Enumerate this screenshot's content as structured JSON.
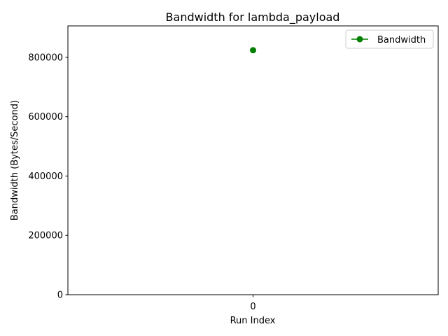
{
  "chart_data": {
    "type": "line",
    "title": "Bandwidth for lambda_payload",
    "xlabel": "Run Index",
    "ylabel": "Bandwidth (Bytes/Second)",
    "x": [
      0
    ],
    "xlim": [
      -0.055,
      0.055
    ],
    "ylim": [
      0,
      906000
    ],
    "xticks": [
      0
    ],
    "xtick_labels": [
      "0"
    ],
    "yticks": [
      0,
      200000,
      400000,
      600000,
      800000
    ],
    "ytick_labels": [
      "0",
      "200000",
      "400000",
      "600000",
      "800000"
    ],
    "series": [
      {
        "name": "Bandwidth",
        "values": [
          824000
        ],
        "color": "#008000",
        "marker": "circle"
      }
    ],
    "legend": {
      "position": "upper-right",
      "entries": [
        "Bandwidth"
      ]
    },
    "grid": false
  }
}
